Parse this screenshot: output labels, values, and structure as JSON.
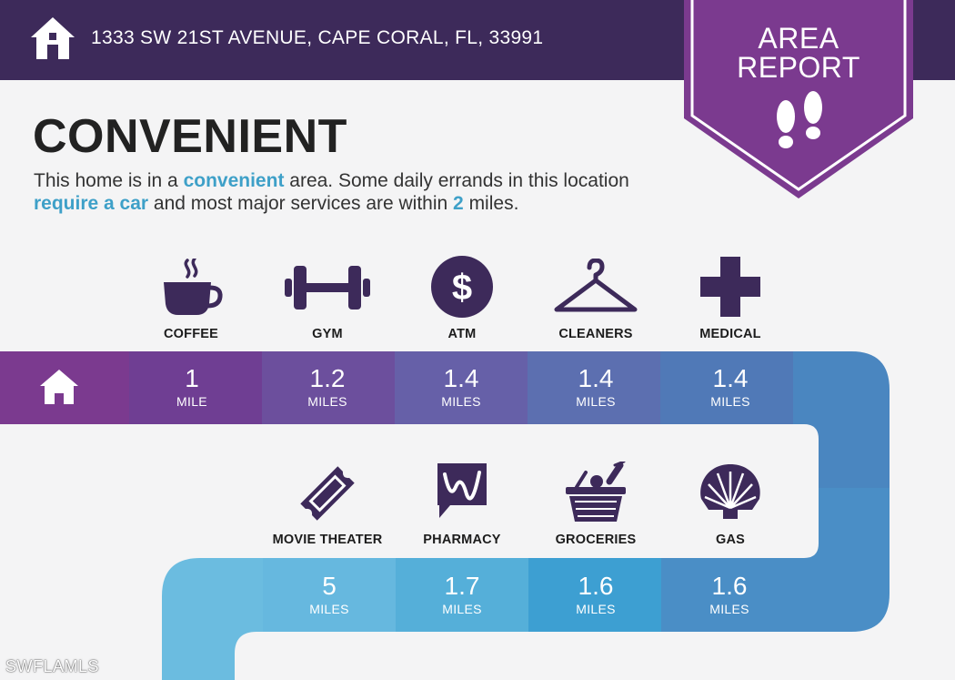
{
  "header": {
    "address": "1333 SW 21ST AVENUE, CAPE CORAL, FL, 33991",
    "home_icon": "house-icon"
  },
  "badge": {
    "line1": "AREA",
    "line2": "REPORT",
    "icon": "footprints-icon",
    "color": "#7b3a8f"
  },
  "headline": "CONVENIENT",
  "description": {
    "p1": "This home is in a ",
    "h1": "convenient",
    "p2": " area. Some daily errands in this location ",
    "h2": "require a car",
    "p3": " and most major services are within ",
    "h3": "2",
    "p4": " miles."
  },
  "row1": [
    {
      "label": "COFFEE",
      "icon": "coffee-cup-icon",
      "distance": "1",
      "unit": "MILE"
    },
    {
      "label": "GYM",
      "icon": "dumbbell-icon",
      "distance": "1.2",
      "unit": "MILES"
    },
    {
      "label": "ATM",
      "icon": "dollar-coin-icon",
      "distance": "1.4",
      "unit": "MILES"
    },
    {
      "label": "CLEANERS",
      "icon": "hanger-icon",
      "distance": "1.4",
      "unit": "MILES"
    },
    {
      "label": "MEDICAL",
      "icon": "medical-cross-icon",
      "distance": "1.4",
      "unit": "MILES"
    }
  ],
  "row2": [
    {
      "label": "MOVIE THEATER",
      "icon": "ticket-icon",
      "distance": "5",
      "unit": "MILES"
    },
    {
      "label": "PHARMACY",
      "icon": "walgreens-w-icon",
      "distance": "1.7",
      "unit": "MILES"
    },
    {
      "label": "GROCERIES",
      "icon": "grocery-basket-icon",
      "distance": "1.6",
      "unit": "MILES"
    },
    {
      "label": "GAS",
      "icon": "shell-icon",
      "distance": "1.6",
      "unit": "MILES"
    }
  ],
  "watermark": "SWFLAMLS",
  "colors": {
    "header": "#3d2a5a",
    "icon": "#3d2a5a",
    "highlight": "#3ea0c8",
    "row_start": "#7b3a8f",
    "row_end": "#4a86c0"
  }
}
